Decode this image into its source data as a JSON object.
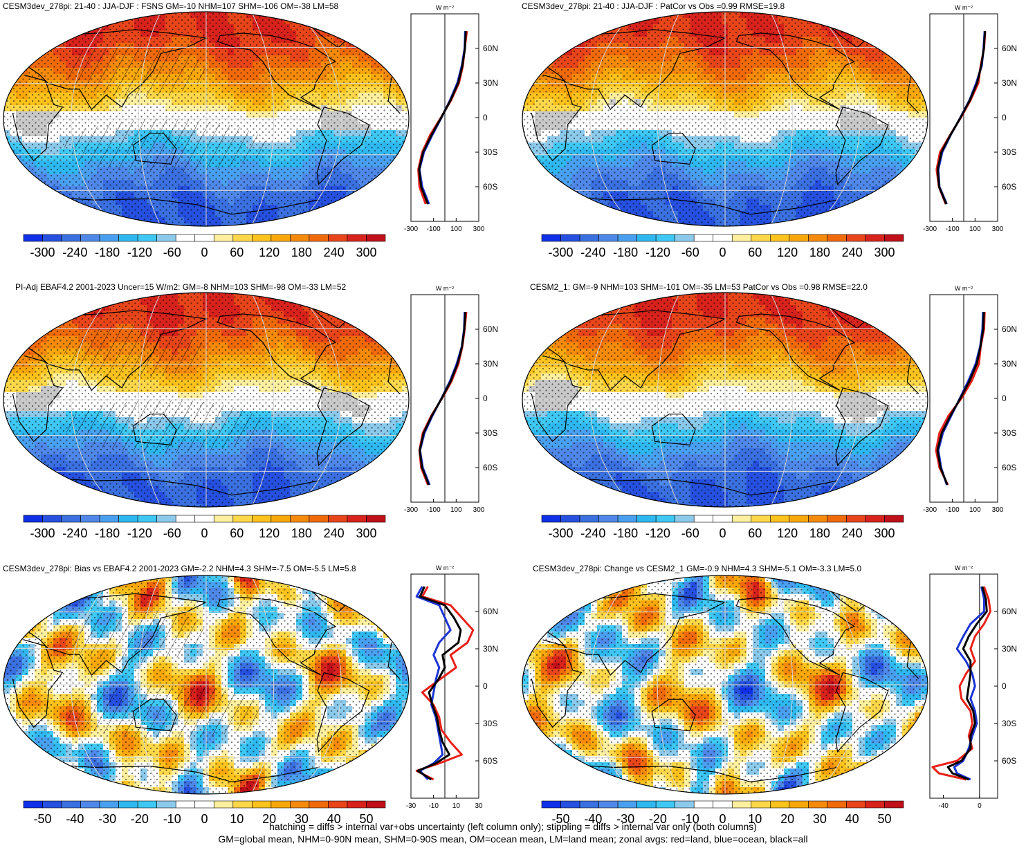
{
  "chart_data": [
    {
      "type": "heatmap",
      "title": "CESM3dev_278pi: 21-40 : JJA-DJF : FSNS GM=-10 NHM=107 SHM=-106 OM=-38 LM=58",
      "colorbar_ticks": [
        "-300",
        "-240",
        "-180",
        "-120",
        "-60",
        "0",
        "60",
        "120",
        "180",
        "240",
        "300"
      ],
      "zonal_units": "W m⁻²",
      "zonal_lat_labels": [
        "60N",
        "30N",
        "0",
        "30S",
        "60S"
      ],
      "zonal_x_ticks": [
        "-300",
        "-100",
        "100",
        "300"
      ],
      "zonal_xlim": [
        -300,
        300
      ],
      "zonal_series": [
        {
          "lat": [
            75,
            60,
            45,
            30,
            15,
            0,
            -15,
            -30,
            -45,
            -60,
            -75
          ],
          "values": [
            195,
            175,
            160,
            125,
            55,
            -35,
            -130,
            -200,
            -235,
            -225,
            -170
          ],
          "color": "#e8211a"
        },
        {
          "lat": [
            75,
            60,
            45,
            30,
            15,
            0,
            -15,
            -30,
            -45,
            -60,
            -75
          ],
          "values": [
            180,
            175,
            150,
            110,
            45,
            -30,
            -110,
            -185,
            -225,
            -200,
            -140
          ],
          "color": "#1c34d4"
        },
        {
          "lat": [
            75,
            60,
            45,
            30,
            15,
            0,
            -15,
            -30,
            -45,
            -60,
            -75
          ],
          "values": [
            185,
            178,
            155,
            118,
            50,
            -32,
            -118,
            -192,
            -228,
            -210,
            -150
          ],
          "color": "#000000"
        }
      ]
    },
    {
      "type": "heatmap",
      "title": "CESM3dev_278pi: 21-40 : JJA-DJF : PatCor vs Obs =0.99 RMSE=19.8",
      "colorbar_ticks": [
        "-300",
        "-240",
        "-180",
        "-120",
        "-60",
        "0",
        "60",
        "120",
        "180",
        "240",
        "300"
      ],
      "zonal_units": "W m⁻²",
      "zonal_lat_labels": [
        "60N",
        "30N",
        "0",
        "30S",
        "60S"
      ],
      "zonal_x_ticks": [
        "-300",
        "-100",
        "100",
        "300"
      ],
      "zonal_xlim": [
        -300,
        300
      ],
      "zonal_series": [
        {
          "lat": [
            75,
            60,
            45,
            30,
            15,
            0,
            -15,
            -30,
            -45,
            -60,
            -75
          ],
          "values": [
            190,
            180,
            150,
            130,
            60,
            -25,
            -120,
            -210,
            -240,
            -220,
            -160
          ],
          "color": "#e8211a"
        },
        {
          "lat": [
            75,
            60,
            45,
            30,
            15,
            0,
            -15,
            -30,
            -45,
            -60,
            -75
          ],
          "values": [
            185,
            175,
            160,
            110,
            50,
            -30,
            -115,
            -190,
            -225,
            -215,
            -150
          ],
          "color": "#1c34d4"
        },
        {
          "lat": [
            75,
            60,
            45,
            30,
            15,
            0,
            -15,
            -30,
            -45,
            -60,
            -75
          ],
          "values": [
            188,
            178,
            155,
            118,
            54,
            -28,
            -117,
            -198,
            -230,
            -218,
            -155
          ],
          "color": "#000000"
        }
      ]
    },
    {
      "type": "heatmap",
      "title": "PI-Adj EBAF4.2 2001-2023 Uncer=15 W/m2: GM=-8 NHM=103 SHM=-98 OM=-33 LM=52",
      "colorbar_ticks": [
        "-300",
        "-240",
        "-180",
        "-120",
        "-60",
        "0",
        "60",
        "120",
        "180",
        "240",
        "300"
      ],
      "zonal_units": "W m⁻²",
      "zonal_lat_labels": [
        "60N",
        "30N",
        "0",
        "30S",
        "60S"
      ],
      "zonal_x_ticks": [
        "-300",
        "-100",
        "100",
        "300"
      ],
      "zonal_xlim": [
        -300,
        300
      ],
      "zonal_series": [
        {
          "lat": [
            75,
            60,
            45,
            30,
            15,
            0,
            -15,
            -30,
            -45,
            -60,
            -75
          ],
          "values": [
            190,
            175,
            155,
            120,
            60,
            -25,
            -120,
            -195,
            -225,
            -210,
            -150
          ],
          "color": "#e8211a"
        },
        {
          "lat": [
            75,
            60,
            45,
            30,
            15,
            0,
            -15,
            -30,
            -45,
            -60,
            -75
          ],
          "values": [
            175,
            170,
            150,
            105,
            45,
            -30,
            -110,
            -180,
            -220,
            -195,
            -135
          ],
          "color": "#1c34d4"
        },
        {
          "lat": [
            75,
            60,
            45,
            30,
            15,
            0,
            -15,
            -30,
            -45,
            -60,
            -75
          ],
          "values": [
            182,
            172,
            152,
            112,
            52,
            -28,
            -115,
            -188,
            -222,
            -202,
            -142
          ],
          "color": "#000000"
        }
      ]
    },
    {
      "type": "heatmap",
      "title": "CESM2_1: GM=-9 NHM=103 SHM=-101 OM=-35 LM=53 PatCor vs Obs =0.98 RMSE=22.0",
      "colorbar_ticks": [
        "-300",
        "-240",
        "-180",
        "-120",
        "-60",
        "0",
        "60",
        "120",
        "180",
        "240",
        "300"
      ],
      "zonal_units": "W m⁻²",
      "zonal_lat_labels": [
        "60N",
        "30N",
        "0",
        "30S",
        "60S"
      ],
      "zonal_x_ticks": [
        "-300",
        "-100",
        "100",
        "300"
      ],
      "zonal_xlim": [
        -300,
        300
      ],
      "zonal_series": [
        {
          "lat": [
            75,
            60,
            45,
            30,
            15,
            0,
            -15,
            -30,
            -45,
            -60,
            -75
          ],
          "values": [
            185,
            180,
            150,
            135,
            70,
            -20,
            -135,
            -215,
            -245,
            -215,
            -140
          ],
          "color": "#e8211a"
        },
        {
          "lat": [
            75,
            60,
            45,
            30,
            15,
            0,
            -15,
            -30,
            -45,
            -60,
            -75
          ],
          "values": [
            170,
            165,
            145,
            105,
            40,
            -35,
            -110,
            -185,
            -225,
            -200,
            -150
          ],
          "color": "#1c34d4"
        },
        {
          "lat": [
            75,
            60,
            45,
            30,
            15,
            0,
            -15,
            -30,
            -45,
            -60,
            -75
          ],
          "values": [
            178,
            172,
            148,
            115,
            50,
            -30,
            -118,
            -195,
            -232,
            -206,
            -145
          ],
          "color": "#000000"
        }
      ]
    },
    {
      "type": "heatmap",
      "title": "CESM3dev_278pi: Bias vs EBAF4.2 2001-2023 GM=-2.2 NHM=4.3 SHM=-7.5 OM=-5.5 LM=5.8",
      "colorbar_ticks": [
        "-50",
        "-40",
        "-30",
        "-20",
        "-10",
        "0",
        "10",
        "20",
        "30",
        "40",
        "50"
      ],
      "zonal_units": "W m⁻²",
      "zonal_lat_labels": [
        "60N",
        "30N",
        "0",
        "30S",
        "60S"
      ],
      "zonal_x_ticks": [
        "-30",
        "-10",
        "10",
        "30"
      ],
      "zonal_xlim": [
        -30,
        30
      ],
      "zonal_series": [
        {
          "lat": [
            80,
            72,
            65,
            55,
            45,
            35,
            25,
            15,
            5,
            -5,
            -15,
            -25,
            -35,
            -45,
            -55,
            -62,
            -68,
            -75
          ],
          "values": [
            -15,
            -20,
            5,
            15,
            25,
            20,
            5,
            10,
            -5,
            -20,
            -10,
            -5,
            -3,
            5,
            15,
            -5,
            -25,
            -10
          ],
          "color": "#e8211a"
        },
        {
          "lat": [
            80,
            72,
            65,
            55,
            45,
            35,
            25,
            15,
            5,
            -5,
            -15,
            -25,
            -35,
            -45,
            -55,
            -62,
            -68,
            -75
          ],
          "values": [
            -20,
            -25,
            -5,
            0,
            5,
            -5,
            -10,
            -5,
            -8,
            -10,
            -12,
            -8,
            -6,
            -4,
            -2,
            -10,
            -22,
            -15
          ],
          "color": "#1c34d4"
        },
        {
          "lat": [
            80,
            72,
            65,
            55,
            45,
            35,
            25,
            15,
            5,
            -5,
            -15,
            -25,
            -35,
            -45,
            -55,
            -62,
            -68,
            -75
          ],
          "values": [
            -18,
            -22,
            0,
            8,
            14,
            12,
            -2,
            0,
            -6,
            -14,
            -11,
            -7,
            -5,
            -2,
            4,
            -8,
            -24,
            -12
          ],
          "color": "#000000"
        }
      ]
    },
    {
      "type": "heatmap",
      "title": "CESM3dev_278pi: Change vs CESM2_1 GM=-0.9 NHM=4.3 SHM=-5.1 OM=-3.3 LM=5.0",
      "colorbar_ticks": [
        "-50",
        "-40",
        "-30",
        "-20",
        "-10",
        "0",
        "10",
        "20",
        "30",
        "40",
        "50"
      ],
      "zonal_units": "W m⁻²",
      "zonal_lat_labels": [
        "60N",
        "30N",
        "0",
        "30S",
        "60S"
      ],
      "zonal_x_ticks": [
        "-40",
        "0"
      ],
      "zonal_xlim": [
        -55,
        20
      ],
      "zonal_series": [
        {
          "lat": [
            80,
            70,
            60,
            50,
            40,
            30,
            20,
            10,
            0,
            -10,
            -20,
            -30,
            -40,
            -50,
            -60,
            -65,
            -70,
            -75
          ],
          "values": [
            5,
            10,
            12,
            5,
            -5,
            -10,
            -5,
            -15,
            -22,
            -20,
            -10,
            -8,
            -12,
            -8,
            -25,
            -52,
            -45,
            -15
          ],
          "color": "#e8211a"
        },
        {
          "lat": [
            80,
            70,
            60,
            50,
            40,
            30,
            20,
            10,
            0,
            -10,
            -20,
            -30,
            -40,
            -50,
            -60,
            -65,
            -70,
            -75
          ],
          "values": [
            2,
            5,
            5,
            -10,
            -18,
            -25,
            -15,
            -8,
            -5,
            -10,
            -5,
            -3,
            -8,
            -12,
            -18,
            -28,
            -25,
            -10
          ],
          "color": "#1c34d4"
        },
        {
          "lat": [
            80,
            70,
            60,
            50,
            40,
            30,
            20,
            10,
            0,
            -10,
            -20,
            -30,
            -40,
            -50,
            -60,
            -65,
            -70,
            -75
          ],
          "values": [
            3,
            7,
            8,
            -3,
            -12,
            -18,
            -10,
            -10,
            -12,
            -14,
            -7,
            -5,
            -10,
            -10,
            -20,
            -35,
            -30,
            -12
          ],
          "color": "#000000"
        }
      ]
    }
  ],
  "footer": {
    "line1": "hatching = diffs > internal var+obs uncertainty (left column only); stippling = diffs > internal var only (both columns)",
    "line2": "GM=global mean, NHM=0-90N mean, SHM=0-90S mean, OM=ocean mean, LM=land mean; zonal avgs: red=land, blue=ocean, black=all"
  },
  "colors": {
    "scale": [
      "#1030e8",
      "#2550e0",
      "#3a70e0",
      "#4f88e8",
      "#4aa0f0",
      "#2fb8f0",
      "#3fc8f4",
      "#8ccaec",
      "#ffffff",
      "#ffffff",
      "#fff0a0",
      "#fed84a",
      "#fcc21d",
      "#f9a80c",
      "#f58a0b",
      "#f06a0a",
      "#e8451a",
      "#d8221c",
      "#c0101a"
    ],
    "land_missing": "#c8c8c8"
  }
}
